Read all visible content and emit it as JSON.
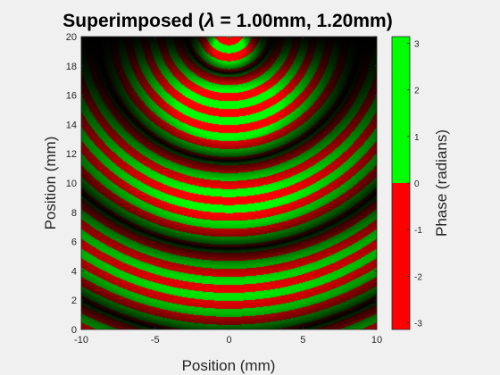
{
  "chart_data": {
    "type": "heatmap",
    "title_prefix": "Superimposed (",
    "title_symbol": "λ",
    "title_suffix": " = 1.00mm, 1.20mm)",
    "xlabel": "Position (mm)",
    "ylabel": "Position (mm)",
    "xlim": [
      -10,
      10
    ],
    "ylim": [
      0,
      20
    ],
    "xticks": [
      -10,
      -5,
      0,
      5,
      10
    ],
    "xtick_labels": [
      "-10",
      "-5",
      "0",
      "5",
      "10"
    ],
    "yticks": [
      0,
      2,
      4,
      6,
      8,
      10,
      12,
      14,
      16,
      18,
      20
    ],
    "ytick_labels": [
      "0",
      "2",
      "4",
      "6",
      "8",
      "10",
      "12",
      "14",
      "16",
      "18",
      "20"
    ],
    "grid": false,
    "wavelengths_mm": [
      1.0,
      1.2
    ],
    "colorbar": {
      "label": "Phase (radians)",
      "lim": [
        -3.1416,
        3.1416
      ],
      "ticks": [
        -3,
        -2,
        -1,
        0,
        1,
        2,
        3
      ],
      "tick_labels": [
        "-3",
        "-2",
        "-1",
        "0",
        "1",
        "2",
        "3"
      ],
      "colors": [
        {
          "range": [
            -3.1416,
            0
          ],
          "color": "#ff0000"
        },
        {
          "range": [
            0,
            3.1416
          ],
          "color": "#00ff00"
        }
      ]
    },
    "background_color": "#000000"
  }
}
